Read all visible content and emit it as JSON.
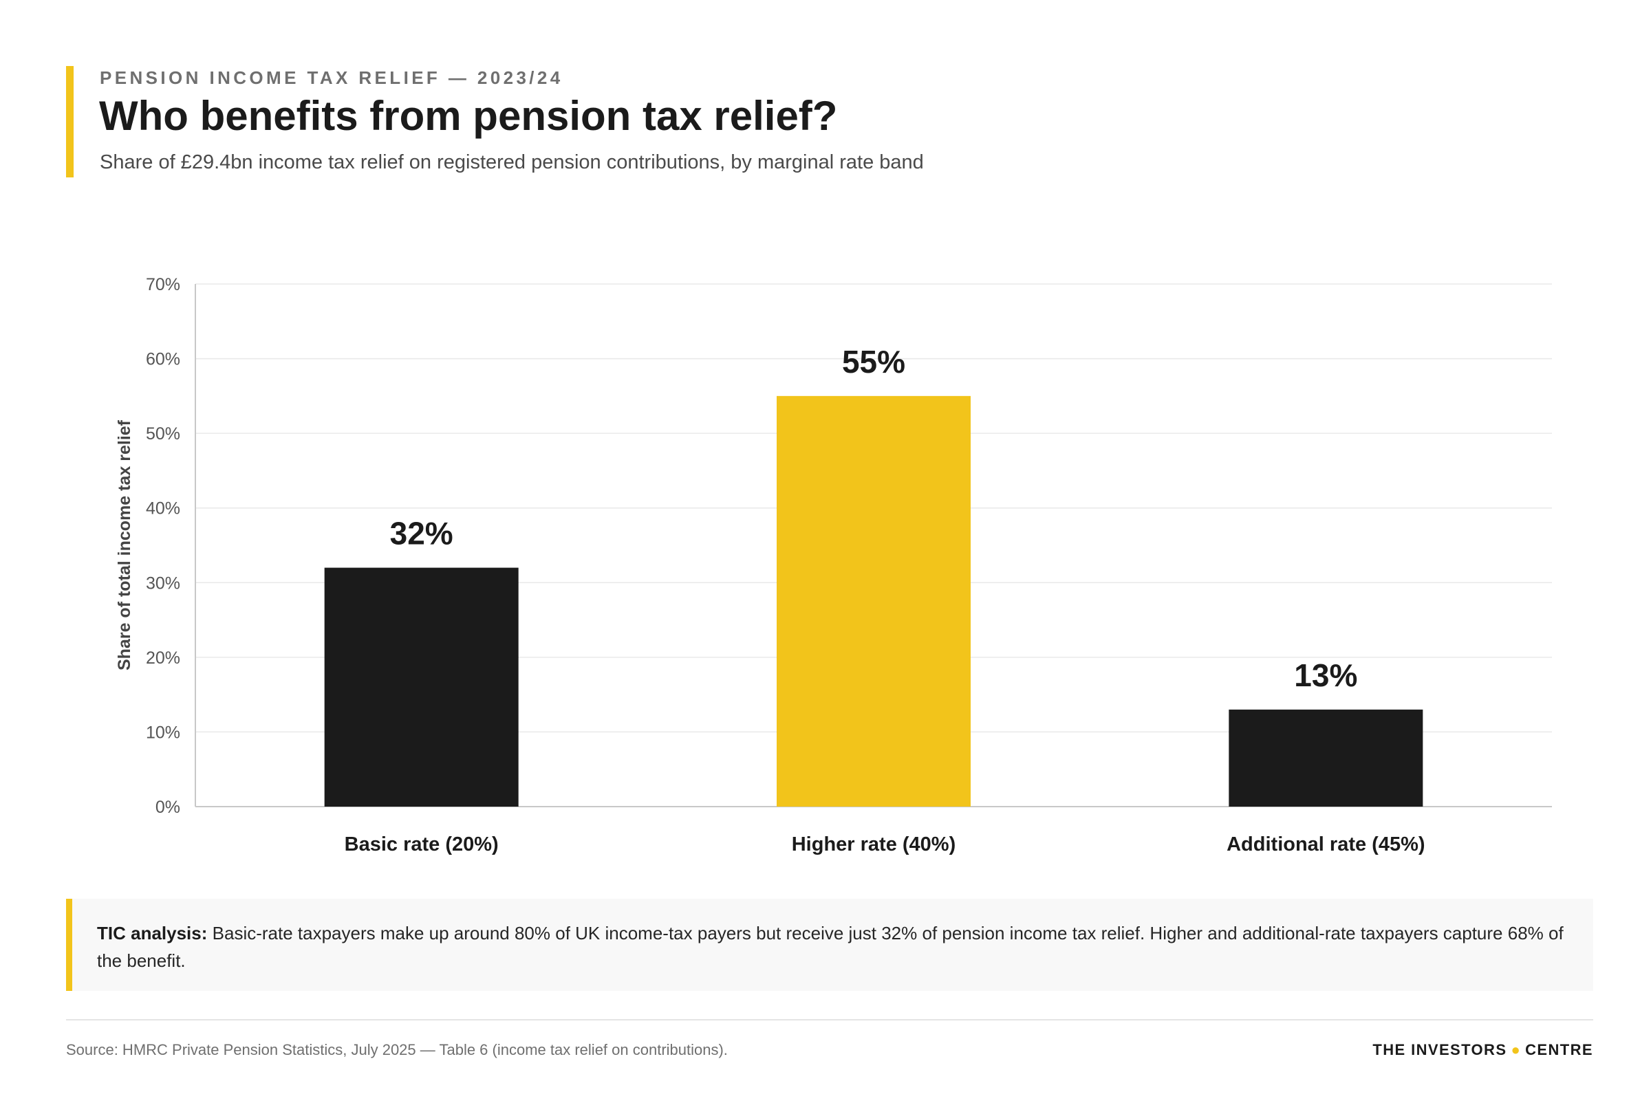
{
  "header": {
    "eyebrow": "PENSION INCOME TAX RELIEF — 2023/24",
    "title": "Who benefits from pension tax relief?",
    "subtitle": "Share of £29.4bn income tax relief on registered pension contributions, by marginal rate band"
  },
  "chart_data": {
    "type": "bar",
    "title": "Who benefits from pension tax relief?",
    "subtitle": "Share of £29.4bn income tax relief on registered pension contributions, by marginal rate band",
    "xlabel": "",
    "ylabel": "Share of total income tax relief",
    "categories": [
      "Basic rate (20%)",
      "Higher rate (40%)",
      "Additional rate (45%)"
    ],
    "values": [
      32,
      55,
      13
    ],
    "value_labels": [
      "32%",
      "55%",
      "13%"
    ],
    "ylim": [
      0,
      70
    ],
    "yticks": [
      0,
      10,
      20,
      30,
      40,
      50,
      60,
      70
    ],
    "ytick_labels": [
      "0%",
      "10%",
      "20%",
      "30%",
      "40%",
      "50%",
      "60%",
      "70%"
    ],
    "grid": true,
    "legend": "none",
    "colors": [
      "#1b1b1b",
      "#f2c41b",
      "#1b1b1b"
    ],
    "axis_color": "#c8c8c8",
    "grid_color": "#e9e9e9"
  },
  "callout": {
    "label": "TIC analysis:",
    "text": "Basic-rate taxpayers make up around 80% of UK income-tax payers but receive just 32% of pension income tax relief. Higher and additional-rate taxpayers capture 68% of the benefit."
  },
  "footer": {
    "source": "Source: HMRC Private Pension Statistics, July 2025 — Table 6 (income tax relief on contributions).",
    "brand_left": "THE INVESTORS",
    "brand_dot": "●",
    "brand_right": "CENTRE"
  }
}
